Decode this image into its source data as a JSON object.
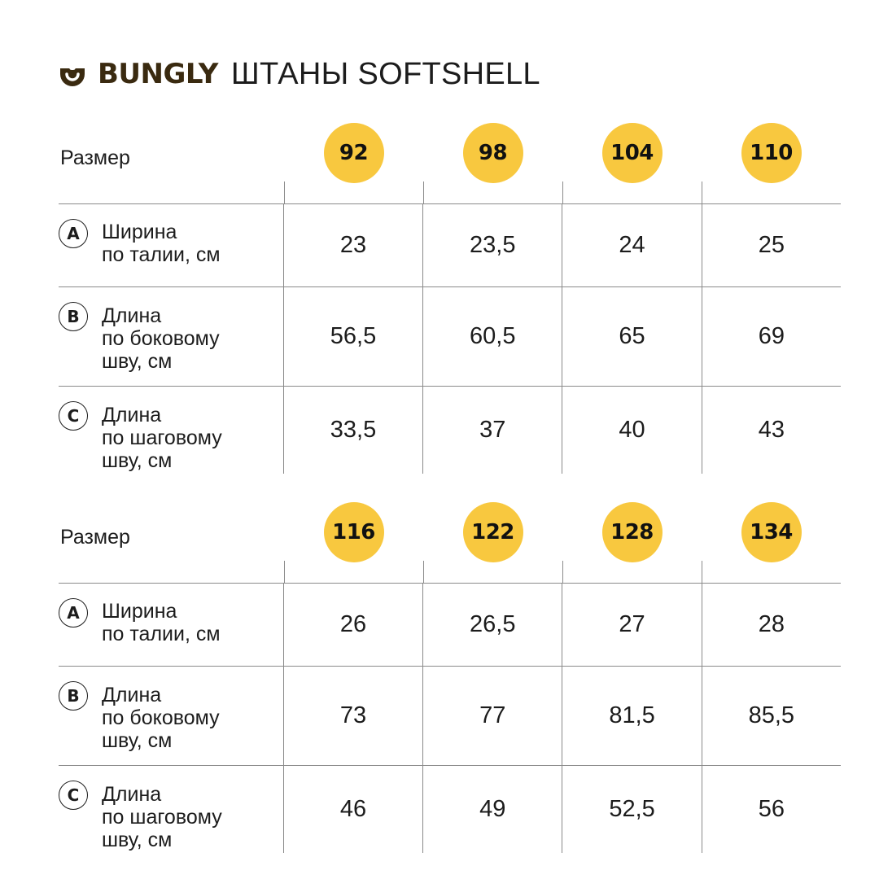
{
  "header": {
    "brand": "BUNGLY",
    "product": "ШТАНЫ SOFTSHELL",
    "logo_icon": "smile-cup-icon",
    "brand_color": "#3a2a10"
  },
  "colors": {
    "size_circle": "#f8c83f",
    "grid_line": "#8a8a8a",
    "text": "#1c1c1c"
  },
  "tables": [
    {
      "size_label": "Размер",
      "sizes": [
        "92",
        "98",
        "104",
        "110"
      ],
      "rows": [
        {
          "badge": "A",
          "label_lines": [
            "Ширина",
            "по талии, см"
          ],
          "values": [
            "23",
            "23,5",
            "24",
            "25"
          ]
        },
        {
          "badge": "B",
          "label_lines": [
            "Длина",
            "по боковому",
            "шву, см"
          ],
          "values": [
            "56,5",
            "60,5",
            "65",
            "69"
          ]
        },
        {
          "badge": "C",
          "label_lines": [
            "Длина",
            "по шаговому",
            "шву, см"
          ],
          "values": [
            "33,5",
            "37",
            "40",
            "43"
          ]
        }
      ]
    },
    {
      "size_label": "Размер",
      "sizes": [
        "116",
        "122",
        "128",
        "134"
      ],
      "rows": [
        {
          "badge": "A",
          "label_lines": [
            "Ширина",
            "по талии, см"
          ],
          "values": [
            "26",
            "26,5",
            "27",
            "28"
          ]
        },
        {
          "badge": "B",
          "label_lines": [
            "Длина",
            "по боковому",
            "шву, см"
          ],
          "values": [
            "73",
            "77",
            "81,5",
            "85,5"
          ]
        },
        {
          "badge": "C",
          "label_lines": [
            "Длина",
            "по шаговому",
            "шву, см"
          ],
          "values": [
            "46",
            "49",
            "52,5",
            "56"
          ]
        }
      ]
    }
  ]
}
